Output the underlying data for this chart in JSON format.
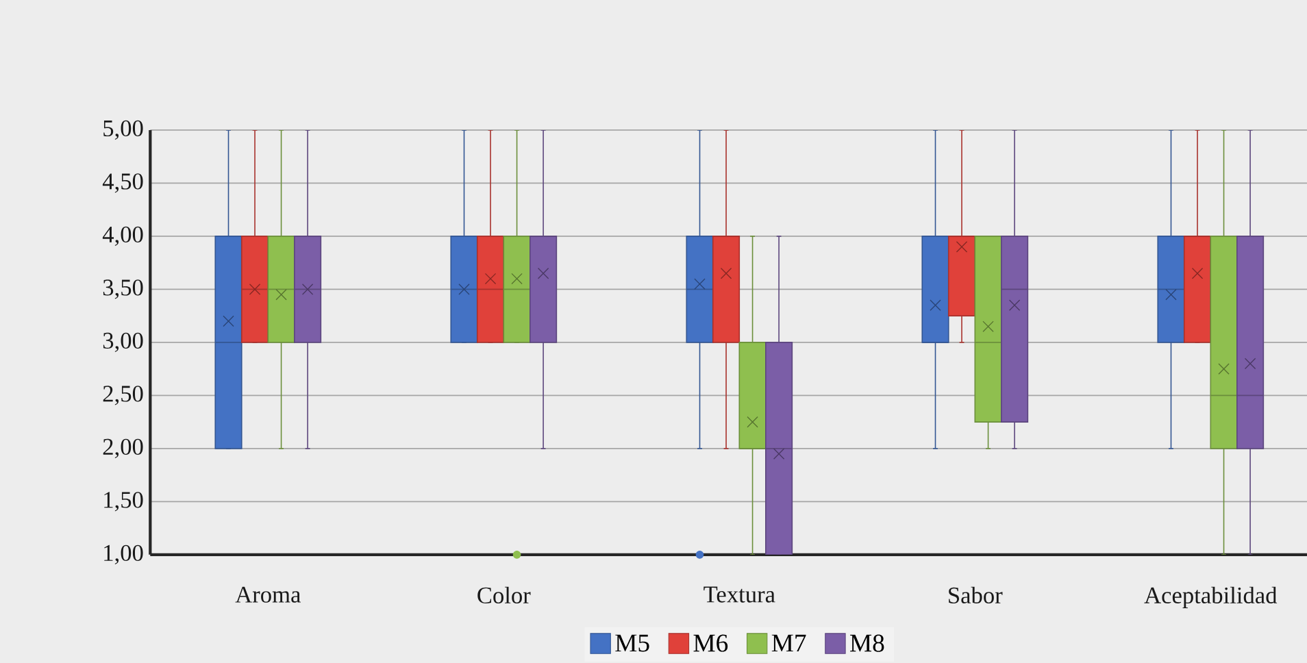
{
  "chart_data": {
    "type": "box",
    "categories": [
      "Aroma",
      "Color",
      "Textura",
      "Sabor",
      "Aceptabilidad"
    ],
    "ylim": [
      1,
      5
    ],
    "yticks": [
      {
        "value": 1,
        "label": "1,00"
      },
      {
        "value": 1.5,
        "label": "1,50"
      },
      {
        "value": 2,
        "label": "2,00"
      },
      {
        "value": 2.5,
        "label": "2,50"
      },
      {
        "value": 3,
        "label": "3,00"
      },
      {
        "value": 3.5,
        "label": "3,50"
      },
      {
        "value": 4,
        "label": "4,00"
      },
      {
        "value": 4.5,
        "label": "4,50"
      },
      {
        "value": 5,
        "label": "5,00"
      }
    ],
    "grid": "y",
    "legend": "bottom",
    "marker": "cross",
    "series": [
      {
        "name": "M5",
        "color": "#4472c4",
        "boxes": [
          {
            "low": 2,
            "q1": 2,
            "median": 3,
            "q3": 4,
            "high": 5,
            "mean": 3.2
          },
          {
            "low": 3,
            "q1": 3,
            "median": 3.5,
            "q3": 4,
            "high": 5,
            "mean": 3.5
          },
          {
            "low": 2,
            "q1": 3,
            "median": 3.5,
            "q3": 4,
            "high": 5,
            "mean": 3.55,
            "outliers": [
              1
            ]
          },
          {
            "low": 2,
            "q1": 3,
            "median": 3,
            "q3": 4,
            "high": 5,
            "mean": 3.35
          },
          {
            "low": 2,
            "q1": 3,
            "median": 3.5,
            "q3": 4,
            "high": 5,
            "mean": 3.45
          }
        ]
      },
      {
        "name": "M6",
        "color": "#e0413a",
        "boxes": [
          {
            "low": 3,
            "q1": 3,
            "median": 3.5,
            "q3": 4,
            "high": 5,
            "mean": 3.5
          },
          {
            "low": 3,
            "q1": 3,
            "median": 3.5,
            "q3": 4,
            "high": 5,
            "mean": 3.6
          },
          {
            "low": 2,
            "q1": 3,
            "median": 4,
            "q3": 4,
            "high": 5,
            "mean": 3.65
          },
          {
            "low": 3,
            "q1": 3.25,
            "median": 4,
            "q3": 4,
            "high": 5,
            "mean": 3.9
          },
          {
            "low": 3,
            "q1": 3,
            "median": 4,
            "q3": 4,
            "high": 5,
            "mean": 3.65
          }
        ]
      },
      {
        "name": "M7",
        "color": "#8fbf4f",
        "boxes": [
          {
            "low": 2,
            "q1": 3,
            "median": 3.5,
            "q3": 4,
            "high": 5,
            "mean": 3.45
          },
          {
            "low": 3,
            "q1": 3,
            "median": 3.5,
            "q3": 4,
            "high": 5,
            "mean": 3.6,
            "outliers": [
              1
            ]
          },
          {
            "low": 1,
            "q1": 2,
            "median": 2,
            "q3": 3,
            "high": 4,
            "mean": 2.25
          },
          {
            "low": 2,
            "q1": 2.25,
            "median": 3,
            "q3": 4,
            "high": 4,
            "mean": 3.15
          },
          {
            "low": 1,
            "q1": 2,
            "median": 2.5,
            "q3": 4,
            "high": 5,
            "mean": 2.75
          }
        ]
      },
      {
        "name": "M8",
        "color": "#7b5ea7",
        "boxes": [
          {
            "low": 2,
            "q1": 3,
            "median": 3.5,
            "q3": 4,
            "high": 5,
            "mean": 3.5
          },
          {
            "low": 2,
            "q1": 3,
            "median": 4,
            "q3": 4,
            "high": 5,
            "mean": 3.65
          },
          {
            "low": 1,
            "q1": 1,
            "median": 2,
            "q3": 3,
            "high": 4,
            "mean": 1.95
          },
          {
            "low": 2,
            "q1": 2.25,
            "median": 3.5,
            "q3": 4,
            "high": 5,
            "mean": 3.35
          },
          {
            "low": 1,
            "q1": 2,
            "median": 2.5,
            "q3": 4,
            "high": 5,
            "mean": 2.8
          }
        ]
      }
    ]
  }
}
